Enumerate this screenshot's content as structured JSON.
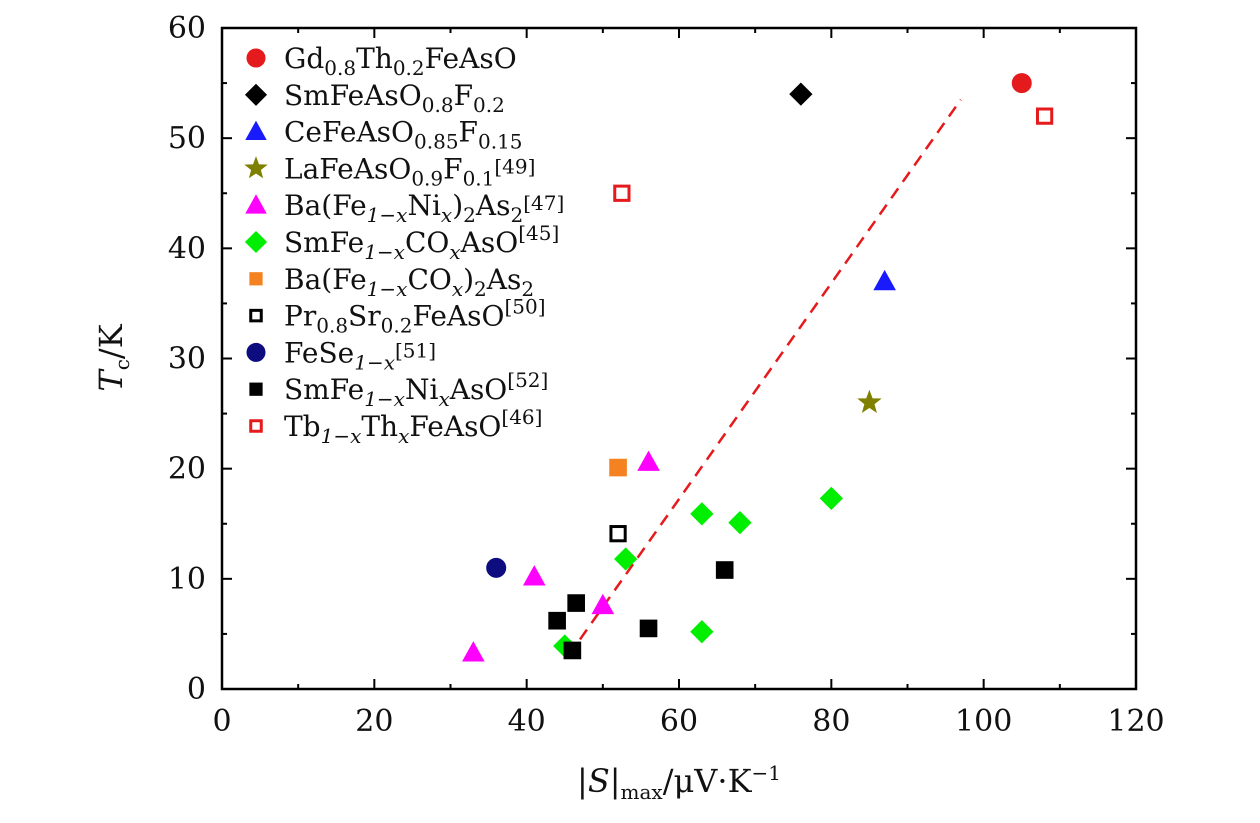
{
  "chart_data": {
    "type": "scatter",
    "title": "",
    "x_axis": {
      "label_parts": [
        "|",
        "S",
        "|",
        "max",
        "/μV·K",
        "−1"
      ],
      "range": [
        0,
        120
      ],
      "ticks": [
        0,
        20,
        40,
        60,
        80,
        100,
        120
      ],
      "tick_labels": [
        "0",
        "20",
        "40",
        "60",
        "80",
        "100",
        "120"
      ]
    },
    "y_axis": {
      "label_parts": [
        "T",
        "c",
        "/K"
      ],
      "range": [
        0,
        60
      ],
      "ticks": [
        0,
        10,
        20,
        30,
        40,
        50,
        60
      ],
      "tick_labels": [
        "0",
        "10",
        "20",
        "30",
        "40",
        "50",
        "60"
      ]
    },
    "legend_position": "top-left",
    "series": [
      {
        "name": "Gd0.8Th0.2FeAsO",
        "label_parts": [
          [
            "Gd",
            "n"
          ],
          [
            "0.8",
            "sub"
          ],
          [
            "Th",
            "n"
          ],
          [
            "0.2",
            "sub"
          ],
          [
            "FeAsO",
            "n"
          ]
        ],
        "marker": "circle",
        "color": "#e41a1c",
        "filled": true,
        "points": [
          [
            105,
            55
          ]
        ]
      },
      {
        "name": "SmFeAsO0.8F0.2",
        "label_parts": [
          [
            "SmFeAsO",
            "n"
          ],
          [
            "0.8",
            "sub"
          ],
          [
            "F",
            "n"
          ],
          [
            "0.2",
            "sub"
          ]
        ],
        "marker": "diamond",
        "color": "#000000",
        "filled": true,
        "points": [
          [
            76,
            54
          ]
        ]
      },
      {
        "name": "CeFeAsO0.85F0.15",
        "label_parts": [
          [
            "CeFeAsO",
            "n"
          ],
          [
            "0.85",
            "sub"
          ],
          [
            "F",
            "n"
          ],
          [
            "0.15",
            "sub"
          ]
        ],
        "marker": "triangle",
        "color": "#1a1aff",
        "filled": true,
        "points": [
          [
            87,
            37
          ]
        ]
      },
      {
        "name": "LaFeAsO0.9F0.1[49]",
        "label_parts": [
          [
            "LaFeAsO",
            "n"
          ],
          [
            "0.9",
            "sub"
          ],
          [
            "F",
            "n"
          ],
          [
            "0.1",
            "sub"
          ],
          [
            "[49]",
            "sup"
          ]
        ],
        "marker": "star",
        "color": "#808000",
        "filled": true,
        "points": [
          [
            85,
            26
          ]
        ]
      },
      {
        "name": "Ba(Fe1−xNix)2As2[47]",
        "label_parts": [
          [
            "Ba(Fe",
            "n"
          ],
          [
            "1−x",
            "sub"
          ],
          [
            "Ni",
            "n"
          ],
          [
            "x",
            "sub"
          ],
          [
            ")",
            "n"
          ],
          [
            "2",
            "sub"
          ],
          [
            "As",
            "n"
          ],
          [
            "2",
            "sub"
          ],
          [
            "[47]",
            "sup"
          ]
        ],
        "marker": "triangle",
        "color": "#ff00ff",
        "filled": true,
        "points": [
          [
            33,
            3.3
          ],
          [
            41,
            10.2
          ],
          [
            50,
            7.6
          ],
          [
            56,
            20.6
          ]
        ]
      },
      {
        "name": "SmFe1−xCOxAsO[45]",
        "label_parts": [
          [
            "SmFe",
            "n"
          ],
          [
            "1−x",
            "sub"
          ],
          [
            "CO",
            "n"
          ],
          [
            "x",
            "sub"
          ],
          [
            "AsO",
            "n"
          ],
          [
            "[45]",
            "sup"
          ]
        ],
        "marker": "diamond",
        "color": "#00ee00",
        "filled": true,
        "points": [
          [
            45,
            3.9
          ],
          [
            53,
            11.8
          ],
          [
            63,
            5.2
          ],
          [
            63,
            15.9
          ],
          [
            68,
            15.1
          ],
          [
            80,
            17.3
          ]
        ]
      },
      {
        "name": "Ba(Fe1−xCOx)2As2",
        "label_parts": [
          [
            "Ba(Fe",
            "n"
          ],
          [
            "1−x",
            "sub"
          ],
          [
            "CO",
            "n"
          ],
          [
            "x",
            "sub"
          ],
          [
            ")",
            "n"
          ],
          [
            "2",
            "sub"
          ],
          [
            "As",
            "n"
          ],
          [
            "2",
            "sub"
          ]
        ],
        "marker": "square",
        "color": "#f58220",
        "filled": true,
        "points": [
          [
            52,
            20.1
          ]
        ]
      },
      {
        "name": "Pr0.8Sr0.2FeAsO[50]",
        "label_parts": [
          [
            "Pr",
            "n"
          ],
          [
            "0.8",
            "sub"
          ],
          [
            "Sr",
            "n"
          ],
          [
            "0.2",
            "sub"
          ],
          [
            "FeAsO",
            "n"
          ],
          [
            "[50]",
            "sup"
          ]
        ],
        "marker": "square",
        "color": "#000000",
        "filled": false,
        "points": [
          [
            52,
            14.1
          ]
        ]
      },
      {
        "name": "FeSe1−x[51]",
        "label_parts": [
          [
            "FeSe",
            "n"
          ],
          [
            "1−x",
            "sub"
          ],
          [
            "[51]",
            "sup"
          ]
        ],
        "marker": "circle",
        "color": "#0d0d80",
        "filled": true,
        "points": [
          [
            36,
            11
          ]
        ]
      },
      {
        "name": "SmFe1−xNixAsO[52]",
        "label_parts": [
          [
            "SmFe",
            "n"
          ],
          [
            "1−x",
            "sub"
          ],
          [
            "Ni",
            "n"
          ],
          [
            "x",
            "sub"
          ],
          [
            "AsO",
            "n"
          ],
          [
            "[52]",
            "sup"
          ]
        ],
        "marker": "square",
        "color": "#000000",
        "filled": true,
        "points": [
          [
            44,
            6.2
          ],
          [
            46,
            3.5
          ],
          [
            46.5,
            7.8
          ],
          [
            56,
            5.5
          ],
          [
            66,
            10.8
          ]
        ]
      },
      {
        "name": "Tb1−xThxFeAsO[46]",
        "label_parts": [
          [
            "Tb",
            "n"
          ],
          [
            "1−x",
            "sub"
          ],
          [
            "Th",
            "n"
          ],
          [
            "x",
            "sub"
          ],
          [
            "FeAsO",
            "n"
          ],
          [
            "[46]",
            "sup"
          ]
        ],
        "marker": "square",
        "color": "#e41a1c",
        "filled": false,
        "points": [
          [
            52.5,
            45
          ],
          [
            108,
            52
          ]
        ]
      }
    ],
    "fit_line": {
      "style": "dashed",
      "color": "#e41a1c",
      "points": [
        [
          47,
          4.5
        ],
        [
          97,
          53.5
        ]
      ]
    }
  }
}
